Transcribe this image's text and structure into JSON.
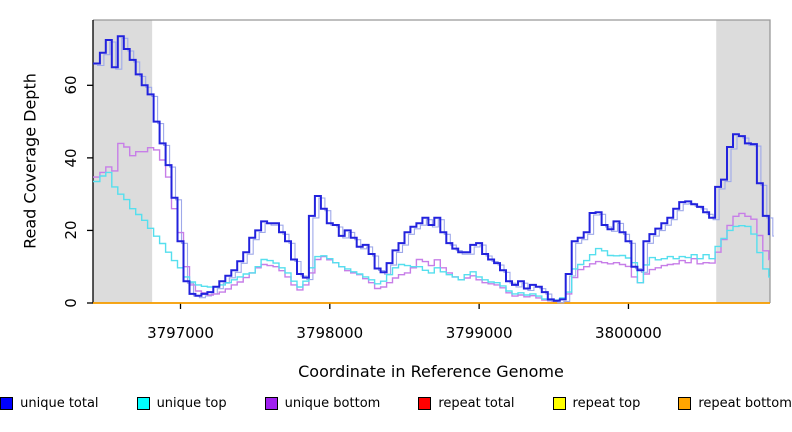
{
  "chart_data": {
    "type": "line",
    "line_style": "step",
    "title": "",
    "xlabel": "Coordinate in Reference Genome",
    "ylabel": "Read Coverage Depth",
    "xlim": [
      3796414,
      3800948
    ],
    "ylim": [
      0,
      78
    ],
    "x_ticks": [
      "3797000",
      "3798000",
      "3799000",
      "3800000"
    ],
    "x_tick_values": [
      3797000,
      3798000,
      3799000,
      3800000
    ],
    "y_ticks": [
      "0",
      "20",
      "40",
      "60"
    ],
    "y_tick_values": [
      0,
      20,
      40,
      60
    ],
    "grid": false,
    "legend_position": "bottom",
    "shade_color": "#dcdcdc",
    "border_color": "#999999",
    "axis_color": "#000000",
    "shaded_regions": [
      [
        3796414,
        3796810
      ],
      [
        3800588,
        3800948
      ]
    ],
    "x_start": 3796420,
    "x_step": 40,
    "series": [
      {
        "name": "unique total",
        "color": "#2222dd",
        "legend_color": "#0000ff",
        "width": 2,
        "echo_color": "#9fa9ea",
        "values": [
          66,
          69,
          72.5,
          65,
          73.5,
          70,
          67,
          63,
          60,
          57.5,
          50,
          44,
          38,
          29,
          17,
          6,
          2.5,
          2,
          2.5,
          3,
          4.5,
          6,
          7.5,
          9,
          11.5,
          14,
          18,
          20,
          22.5,
          22,
          22,
          19.5,
          17,
          12,
          8,
          7,
          24,
          29.5,
          26,
          22,
          21.5,
          18.5,
          20,
          18,
          15.5,
          16,
          13.5,
          9.5,
          8.5,
          11,
          14.5,
          16.5,
          19.5,
          21,
          22,
          23.5,
          21.5,
          23.5,
          19.5,
          16.5,
          15,
          14,
          14,
          16,
          16.5,
          13.5,
          12,
          11,
          9,
          6,
          5,
          6,
          4,
          5,
          4.5,
          3,
          1,
          0.6,
          1,
          8,
          17,
          18,
          19.5,
          24.8,
          25,
          21.5,
          20.3,
          22.5,
          19.5,
          17,
          10,
          9,
          17,
          19,
          20.5,
          22,
          23.5,
          26,
          27.8,
          28,
          27.2,
          26.5,
          25,
          23.5,
          32,
          34,
          43,
          46.5,
          46,
          44,
          43.8,
          33,
          24,
          19
        ]
      },
      {
        "name": "unique top",
        "color": "#55dfee",
        "legend_color": "#00ffff",
        "width": 1.4,
        "values": [
          33.5,
          35,
          36,
          32,
          30,
          28.5,
          26,
          24.4,
          22.8,
          20.6,
          18.4,
          16.4,
          14,
          11.7,
          9.7,
          7.2,
          5.8,
          5,
          4.6,
          4.4,
          4.4,
          5,
          5.6,
          6.4,
          7.2,
          8,
          8.3,
          10,
          12,
          11.7,
          11,
          9.7,
          8.3,
          6,
          4.4,
          6,
          9.7,
          12.8,
          13,
          12.2,
          11.1,
          10,
          9.4,
          8.6,
          8,
          7.2,
          6.4,
          5.3,
          6,
          7.8,
          9.7,
          10.6,
          10.3,
          10,
          10,
          9,
          8.3,
          9.7,
          8.6,
          7.8,
          7.2,
          6.4,
          7.8,
          8.6,
          7.2,
          6.4,
          5.8,
          5.6,
          4.7,
          3.3,
          2.5,
          2.8,
          2.2,
          2.5,
          1.9,
          1.1,
          0.8,
          0.8,
          1.4,
          3,
          9.4,
          10.6,
          11.7,
          13.3,
          15,
          14.4,
          13.1,
          13,
          13.1,
          12.4,
          11.1,
          5.6,
          10.5,
          12.5,
          11.9,
          12.2,
          12.8,
          12.2,
          12.8,
          12.5,
          13.3,
          12.2,
          13.3,
          12.2,
          15.6,
          17.8,
          20,
          21.1,
          21.3,
          21.1,
          19,
          13.9,
          9.4,
          7.2
        ]
      },
      {
        "name": "unique bottom",
        "color": "#c77ee8",
        "legend_color": "#a020f0",
        "width": 1.4,
        "values": [
          34.7,
          36,
          37.5,
          36.4,
          44,
          43,
          40.6,
          41.7,
          41.7,
          42.8,
          42.2,
          39.4,
          34.7,
          26,
          19.4,
          10,
          5,
          3.3,
          2.8,
          2.2,
          2.5,
          3,
          3.9,
          5,
          5.8,
          7,
          8.3,
          9.7,
          10.6,
          10.3,
          10,
          8.9,
          7.2,
          5,
          3.6,
          5,
          8.3,
          12,
          12.8,
          11.9,
          11.1,
          10,
          8.9,
          8.3,
          7.8,
          6.7,
          5.6,
          4,
          4.4,
          5.6,
          6.9,
          7.8,
          8.3,
          9.7,
          12,
          11.4,
          10.3,
          11.9,
          9.7,
          8.3,
          7.2,
          6.4,
          6.9,
          7.5,
          6.4,
          5.6,
          5.3,
          5,
          4.2,
          2.8,
          1.9,
          2.2,
          1.7,
          2,
          1.4,
          0.8,
          0.6,
          0.6,
          1.1,
          2.5,
          7,
          9.2,
          10,
          10.8,
          11.4,
          11.1,
          10.8,
          11.1,
          10.6,
          10.1,
          7.2,
          5.6,
          8,
          9.2,
          9.7,
          10.3,
          10.6,
          10.8,
          11.7,
          11.1,
          12.2,
          10.8,
          11.1,
          11,
          14,
          17.5,
          21.4,
          23.9,
          24.7,
          23.9,
          23.1,
          18.6,
          14.4,
          12
        ]
      },
      {
        "name": "repeat total",
        "color": "#ff0000",
        "legend_color": "#ff0000",
        "width": 1.2,
        "constant": 0
      },
      {
        "name": "repeat top",
        "color": "#ffff00",
        "legend_color": "#ffff00",
        "width": 1.2,
        "constant": 0
      },
      {
        "name": "repeat bottom",
        "color": "#ffa500",
        "legend_color": "#ffa500",
        "width": 1.6,
        "constant": 0
      }
    ]
  }
}
